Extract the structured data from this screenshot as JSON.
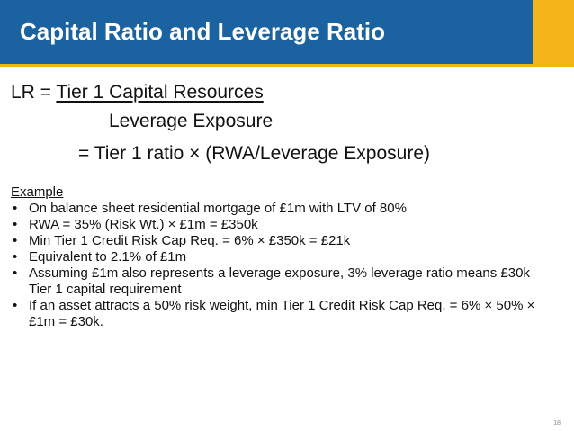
{
  "slide": {
    "title": "Capital Ratio and Leverage Ratio",
    "page_number": "18"
  },
  "formula": {
    "prefix": "LR = ",
    "numerator": "Tier 1 Capital Resources ",
    "denominator": "Leverage Exposure",
    "equivalent": "= Tier 1 ratio × (RWA/Leverage Exposure)"
  },
  "example": {
    "heading": "Example",
    "bullets": [
      "On balance sheet residential mortgage of £1m with LTV of 80%",
      "RWA = 35% (Risk Wt.) × £1m = £350k",
      "Min Tier 1 Credit Risk Cap Req. = 6% × £350k = £21k",
      "Equivalent to 2.1% of £1m",
      "Assuming £1m also represents a leverage exposure, 3% leverage ratio means £30k Tier 1 capital requirement",
      "If an asset attracts a 50% risk weight, min Tier 1 Credit Risk Cap Req. = 6% × 50% × £1m = £30k."
    ]
  },
  "colors": {
    "header_blue": "#1a63a0",
    "accent_yellow": "#f4b41a"
  }
}
